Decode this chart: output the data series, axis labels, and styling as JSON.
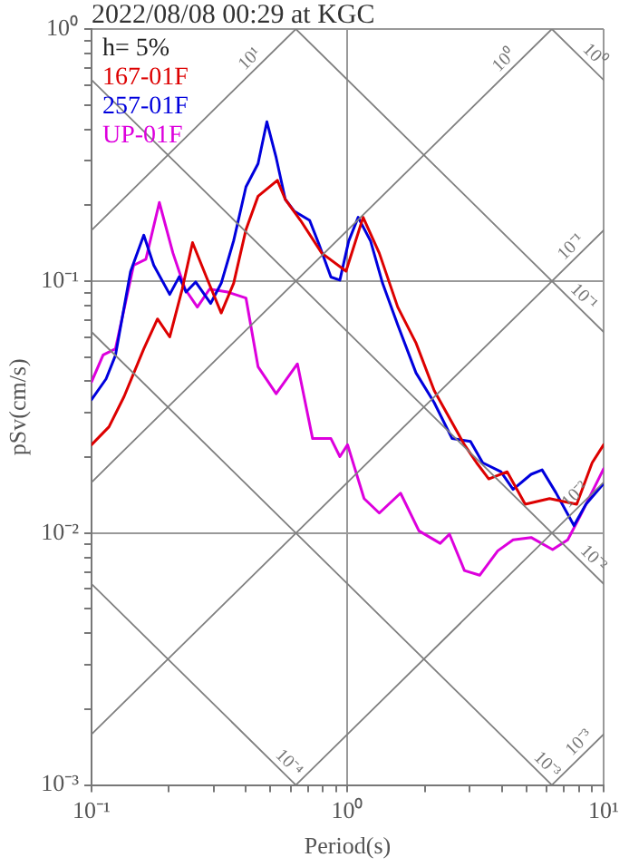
{
  "chart_data": {
    "type": "line",
    "title": "2022/08/08 00:29 at KGC",
    "xlabel": "Period(s)",
    "ylabel": "pSv(cm/s)",
    "log": "xy",
    "grid": true,
    "legend": "top left",
    "line_style": "solid",
    "marker": "none",
    "xlim": [
      0.1,
      10
    ],
    "ylim": [
      0.001,
      1
    ],
    "xticks": [
      {
        "value": 0.1,
        "label": "10⁻¹"
      },
      {
        "value": 0.2,
        "label": null
      },
      {
        "value": 0.3,
        "label": null
      },
      {
        "value": 0.4,
        "label": null
      },
      {
        "value": 0.5,
        "label": null
      },
      {
        "value": 0.6,
        "label": null
      },
      {
        "value": 0.7,
        "label": null
      },
      {
        "value": 0.8,
        "label": null
      },
      {
        "value": 0.9,
        "label": null
      },
      {
        "value": 1,
        "label": "10⁰"
      },
      {
        "value": 2,
        "label": null
      },
      {
        "value": 3,
        "label": null
      },
      {
        "value": 4,
        "label": null
      },
      {
        "value": 5,
        "label": null
      },
      {
        "value": 6,
        "label": null
      },
      {
        "value": 7,
        "label": null
      },
      {
        "value": 8,
        "label": null
      },
      {
        "value": 9,
        "label": null
      },
      {
        "value": 10,
        "label": "10¹"
      }
    ],
    "yticks": [
      {
        "value": 0.001,
        "label": "10⁻³"
      },
      {
        "value": 0.002,
        "label": null
      },
      {
        "value": 0.003,
        "label": null
      },
      {
        "value": 0.004,
        "label": null
      },
      {
        "value": 0.005,
        "label": null
      },
      {
        "value": 0.006,
        "label": null
      },
      {
        "value": 0.007,
        "label": null
      },
      {
        "value": 0.008,
        "label": null
      },
      {
        "value": 0.009,
        "label": null
      },
      {
        "value": 0.01,
        "label": "10⁻²"
      },
      {
        "value": 0.02,
        "label": null
      },
      {
        "value": 0.03,
        "label": null
      },
      {
        "value": 0.04,
        "label": null
      },
      {
        "value": 0.05,
        "label": null
      },
      {
        "value": 0.06,
        "label": null
      },
      {
        "value": 0.07,
        "label": null
      },
      {
        "value": 0.08,
        "label": null
      },
      {
        "value": 0.09,
        "label": null
      },
      {
        "value": 0.1,
        "label": "10⁻¹"
      },
      {
        "value": 0.2,
        "label": null
      },
      {
        "value": 0.3,
        "label": null
      },
      {
        "value": 0.4,
        "label": null
      },
      {
        "value": 0.5,
        "label": null
      },
      {
        "value": 0.6,
        "label": null
      },
      {
        "value": 0.7,
        "label": null
      },
      {
        "value": 0.8,
        "label": null
      },
      {
        "value": 0.9,
        "label": null
      },
      {
        "value": 1,
        "label": "10⁰"
      }
    ],
    "annotations": [
      "h= 5%",
      {
        "text": "10¹",
        "x": 0.445,
        "y": 0.708
      },
      {
        "text": "10⁰",
        "x": 4.4,
        "y": 0.7
      },
      {
        "text": "10⁰",
        "x": 8.6,
        "y": 0.73
      },
      {
        "text": "10⁻¹",
        "x": 8.0,
        "y": 0.127
      },
      {
        "text": "10⁻¹",
        "x": 7.8,
        "y": 0.0805
      },
      {
        "text": "10⁻²",
        "x": 8.3,
        "y": 0.0132
      },
      {
        "text": "10⁻²",
        "x": 8.5,
        "y": 0.00739
      },
      {
        "text": "10⁻³",
        "x": 5.6,
        "y": 0.00112
      },
      {
        "text": "10⁻³",
        "x": 8.6,
        "y": 0.00137
      },
      {
        "text": "10⁻⁴",
        "x": 0.55,
        "y": 0.00114
      }
    ],
    "series": [
      {
        "color": "#808080",
        "x": [
          0.1,
          0.628
        ],
        "values": [
          0.159,
          1
        ]
      },
      {
        "color": "#808080",
        "x": [
          0.1,
          6.28
        ],
        "values": [
          0.0159,
          1
        ]
      },
      {
        "color": "#808080",
        "x": [
          0.1,
          10
        ],
        "values": [
          0.00159,
          0.159
        ]
      },
      {
        "color": "#808080",
        "x": [
          0.628,
          10
        ],
        "values": [
          0.001,
          0.0159
        ]
      },
      {
        "color": "#808080",
        "x": [
          6.28,
          10
        ],
        "values": [
          0.001,
          0.00159
        ]
      },
      {
        "color": "#808080",
        "x": [
          6.28,
          10
        ],
        "values": [
          1,
          0.628
        ]
      },
      {
        "color": "#808080",
        "x": [
          0.628,
          10
        ],
        "values": [
          1,
          0.0628
        ]
      },
      {
        "color": "#808080",
        "x": [
          0.1,
          10
        ],
        "values": [
          0.628,
          0.00628
        ]
      },
      {
        "color": "#808080",
        "x": [
          0.1,
          6.28
        ],
        "values": [
          0.0628,
          0.001
        ]
      },
      {
        "color": "#808080",
        "x": [
          0.1,
          0.628
        ],
        "values": [
          0.00628,
          0.001
        ]
      },
      {
        "name": "167-01F",
        "color": "#dd0000",
        "x": [
          0.1,
          0.117,
          0.134,
          0.16,
          0.181,
          0.202,
          0.226,
          0.248,
          0.281,
          0.321,
          0.359,
          0.401,
          0.447,
          0.532,
          0.571,
          0.655,
          0.793,
          0.986,
          1.15,
          1.33,
          1.57,
          1.85,
          2.18,
          2.86,
          3.19,
          3.56,
          4.2,
          4.94,
          6.15,
          7.85,
          9.02,
          10
        ],
        "values": [
          0.0224,
          0.0264,
          0.0348,
          0.0538,
          0.0707,
          0.06,
          0.0929,
          0.142,
          0.1037,
          0.0747,
          0.098,
          0.16,
          0.217,
          0.251,
          0.211,
          0.174,
          0.129,
          0.1094,
          0.179,
          0.129,
          0.0788,
          0.0568,
          0.0367,
          0.0224,
          0.019,
          0.0164,
          0.0175,
          0.013,
          0.0137,
          0.013,
          0.019,
          0.0224
        ]
      },
      {
        "name": "257-01F",
        "color": "#0000dd",
        "x": [
          0.1,
          0.114,
          0.124,
          0.142,
          0.16,
          0.175,
          0.202,
          0.22,
          0.234,
          0.255,
          0.292,
          0.321,
          0.359,
          0.401,
          0.447,
          0.484,
          0.526,
          0.571,
          0.62,
          0.711,
          0.773,
          0.861,
          0.933,
          1.01,
          1.1,
          1.23,
          1.37,
          1.57,
          1.85,
          2.18,
          2.56,
          3.02,
          3.37,
          3.97,
          4.43,
          5.21,
          5.75,
          6.5,
          7.66,
          8.53,
          10
        ],
        "values": [
          0.0338,
          0.0409,
          0.0507,
          0.109,
          0.152,
          0.1155,
          0.0885,
          0.104,
          0.0904,
          0.0991,
          0.0815,
          0.098,
          0.1445,
          0.2365,
          0.292,
          0.4285,
          0.309,
          0.211,
          0.189,
          0.174,
          0.14,
          0.1037,
          0.1008,
          0.144,
          0.179,
          0.144,
          0.098,
          0.067,
          0.0432,
          0.0329,
          0.0237,
          0.0231,
          0.019,
          0.0175,
          0.0149,
          0.0171,
          0.0178,
          0.0145,
          0.0107,
          0.013,
          0.0157
        ]
      },
      {
        "name": "UP-01F",
        "color": "#dd00dd",
        "x": [
          0.1,
          0.111,
          0.124,
          0.146,
          0.163,
          0.184,
          0.208,
          0.232,
          0.259,
          0.289,
          0.34,
          0.401,
          0.447,
          0.526,
          0.637,
          0.73,
          0.861,
          0.933,
          1.0,
          1.16,
          1.33,
          1.61,
          1.9,
          2.3,
          2.5,
          2.86,
          3.28,
          3.86,
          4.43,
          5.21,
          6.32,
          7.24,
          8.07,
          10
        ],
        "values": [
          0.0398,
          0.0509,
          0.0538,
          0.1155,
          0.122,
          0.205,
          0.129,
          0.0929,
          0.0788,
          0.0929,
          0.0904,
          0.0856,
          0.0457,
          0.0357,
          0.0469,
          0.0237,
          0.0237,
          0.0201,
          0.0224,
          0.0137,
          0.012,
          0.0144,
          0.0102,
          0.0091,
          0.0099,
          0.0071,
          0.0068,
          0.0085,
          0.0094,
          0.0096,
          0.0086,
          0.0094,
          0.0116,
          0.018
        ]
      }
    ]
  }
}
